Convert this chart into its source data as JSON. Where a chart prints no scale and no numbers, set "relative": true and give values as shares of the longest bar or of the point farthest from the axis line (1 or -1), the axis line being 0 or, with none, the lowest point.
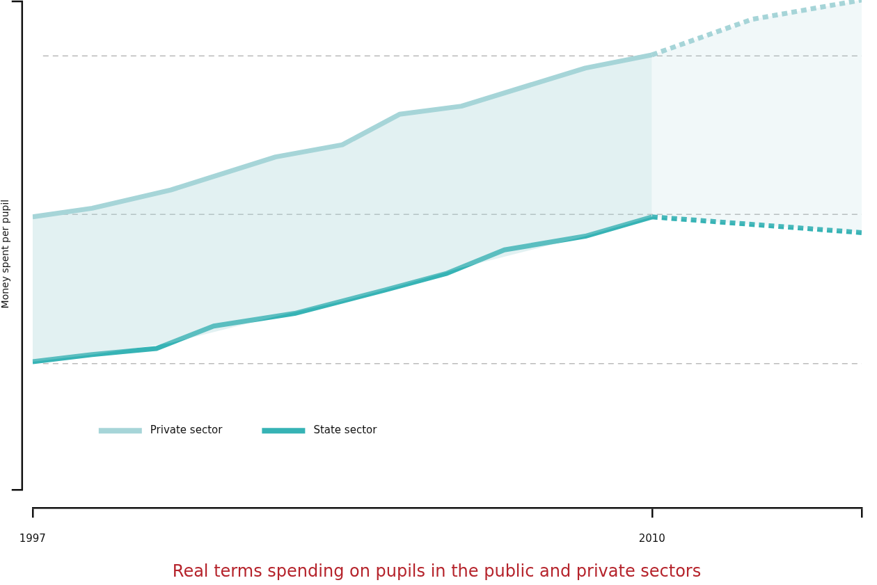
{
  "chart_data": {
    "type": "line",
    "title": "Real terms spending on pupils in the public and private sectors",
    "ylabel": "Money spent per pupil",
    "relative": true,
    "xlim": [
      1997,
      2014.4
    ],
    "xticks": [
      1997,
      2010,
      {
        "value": 2014.4,
        "label": null
      }
    ],
    "grid": false,
    "legend": "bottom left",
    "marker": "none",
    "series": [
      {
        "name": "Private sector",
        "color": "#a6d5d8",
        "x": [
          1997,
          1998.25,
          1999.9,
          2002.1,
          2003.5,
          2004.7,
          2006,
          2008.6,
          2010
        ],
        "values": [
          0.573,
          0.59,
          0.626,
          0.691,
          0.715,
          0.775,
          0.791,
          0.866,
          0.892
        ],
        "lower": [
          0.288,
          0.302,
          0.325,
          0.377,
          0.407,
          0.437,
          0.473,
          0.535,
          0.573
        ],
        "upper": [
          0.573,
          0.59,
          0.626,
          0.691,
          0.715,
          0.775,
          0.791,
          0.866,
          0.892
        ]
      },
      {
        "name": "State sector",
        "color": "#36b3b5",
        "x": [
          1997,
          1998.25,
          1999.6,
          2000.8,
          2002.5,
          2004.4,
          2005.7,
          2006.9,
          2008.6,
          2010
        ],
        "values": [
          0.288,
          0.302,
          0.314,
          0.358,
          0.383,
          0.429,
          0.462,
          0.508,
          0.535,
          0.573
        ]
      },
      {
        "color": "#a6d5d8",
        "line_style": "dashed",
        "x": [
          2010,
          2012.1,
          2014.4
        ],
        "values": [
          0.892,
          0.962,
          1.0
        ],
        "lower": [
          0.573,
          0.558,
          0.542
        ],
        "upper": [
          0.892,
          0.962,
          1.0
        ]
      },
      {
        "color": "#36b3b5",
        "line_style": "dashed",
        "x": [
          2010,
          2014.4
        ],
        "values": [
          0.573,
          0.542
        ]
      }
    ],
    "ref_lines": [
      {
        "axis": "y",
        "value": 0.89,
        "color": "#999999",
        "line_style": "dashed"
      },
      {
        "axis": "y",
        "value": 0.578,
        "color": "#999999",
        "line_style": "dashed"
      },
      {
        "axis": "y",
        "value": 0.284,
        "color": "#999999",
        "line_style": "dashed"
      }
    ]
  }
}
